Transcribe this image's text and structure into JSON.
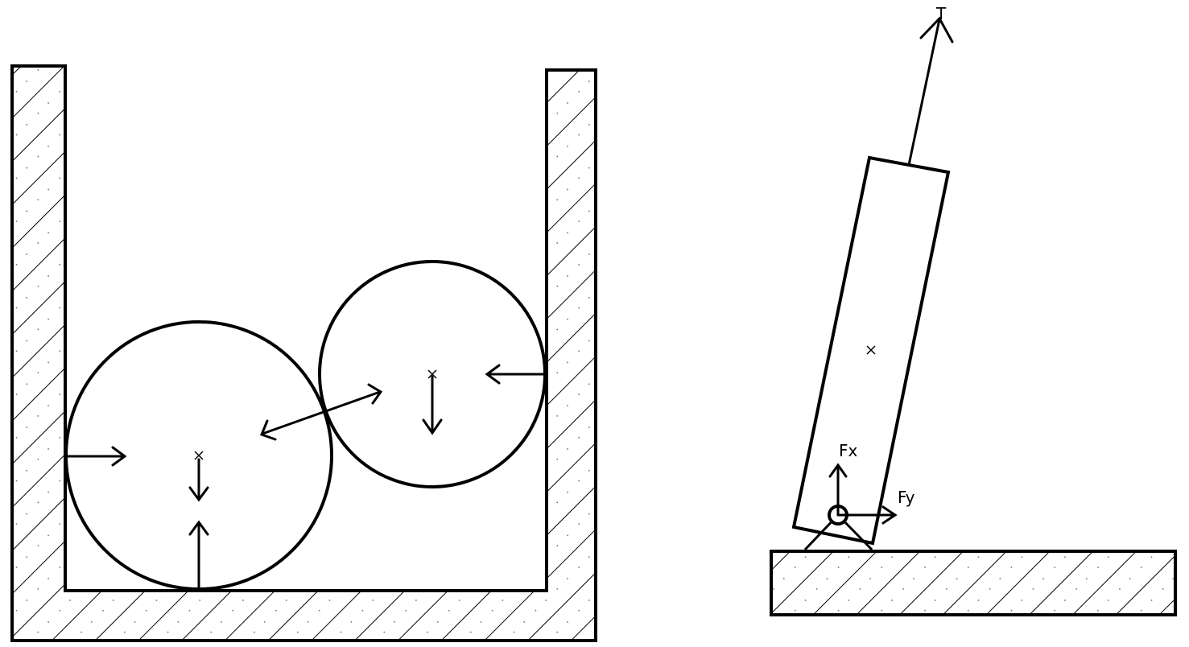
{
  "colors": {
    "line": "#000000",
    "hatch": "#000000",
    "background": "#ffffff"
  },
  "labels": {
    "tension": "T",
    "fx": "Fx",
    "fy": "Fy"
  }
}
